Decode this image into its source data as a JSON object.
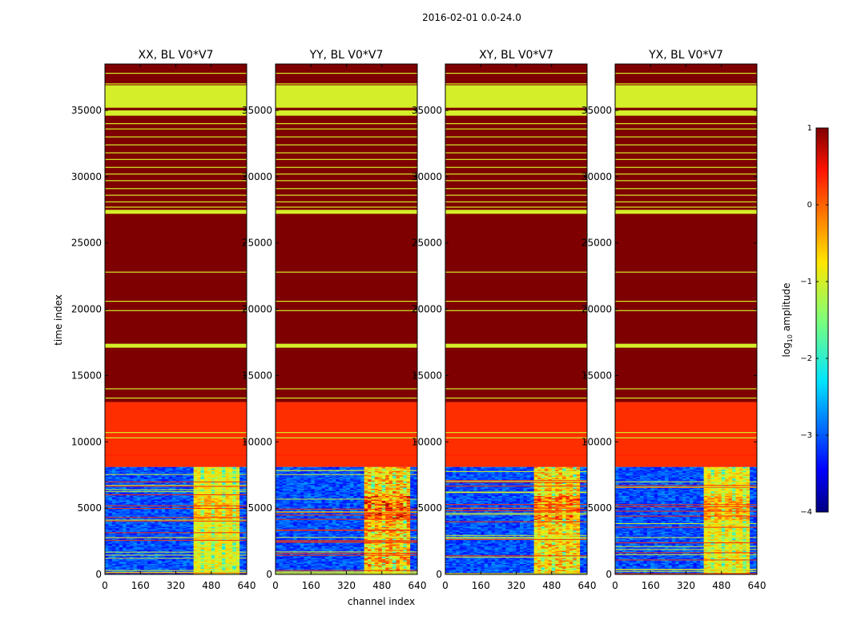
{
  "chart_data": {
    "type": "heatmap",
    "suptitle": "2016-02-01 0.0-24.0",
    "xlabel": "channel index",
    "ylabel": "time index",
    "xlim": [
      0,
      640
    ],
    "ylim": [
      0,
      38500
    ],
    "xticks": [
      0,
      160,
      320,
      480,
      640
    ],
    "xtick_labels": [
      "0",
      "160",
      "320",
      "480",
      "640"
    ],
    "yticks": [
      0,
      5000,
      10000,
      15000,
      20000,
      25000,
      30000,
      35000
    ],
    "ytick_labels": [
      "0",
      "5000",
      "10000",
      "15000",
      "20000",
      "25000",
      "30000",
      "35000"
    ],
    "colormap": "jet",
    "colorbar": {
      "label": "log10 amplitude",
      "label_base": "log",
      "label_sub": "10",
      "label_rest": "amplitude",
      "range": [
        -4,
        1
      ],
      "ticks": [
        1,
        0,
        -1,
        -2,
        -3,
        -4
      ],
      "tick_labels": [
        "1",
        "0",
        "−1",
        "−2",
        "−3",
        "−4"
      ]
    },
    "panels": [
      {
        "name": "XX",
        "title": "XX, BL V0*V7",
        "rfi_strength": 0.45
      },
      {
        "name": "YY",
        "title": "YY, BL V0*V7",
        "rfi_strength": 0.85
      },
      {
        "name": "XY",
        "title": "XY, BL V0*V7",
        "rfi_strength": 0.75
      },
      {
        "name": "YX",
        "title": "YX, BL V0*V7",
        "rfi_strength": 0.55
      }
    ],
    "rfi_channel_range": [
      400,
      600
    ],
    "bands": [
      {
        "from": 0,
        "to": 8100,
        "kind": "data",
        "log_amp": -3.3
      },
      {
        "from": 8100,
        "to": 13000,
        "kind": "flag",
        "log_amp": 0.3
      },
      {
        "from": 13000,
        "to": 38500,
        "kind": "flag",
        "log_amp": 1.0
      }
    ],
    "sub_bands": [
      {
        "from": 27200,
        "to": 27500,
        "log_amp": -1.0
      },
      {
        "from": 17100,
        "to": 17400,
        "log_amp": -1.0
      },
      {
        "from": 34600,
        "to": 35000,
        "log_amp": -1.0
      },
      {
        "from": 35200,
        "to": 36900,
        "log_amp": -1.0
      }
    ],
    "lines": [
      {
        "t": 37800,
        "log_amp": -1.0
      },
      {
        "t": 37000,
        "log_amp": -1.0
      },
      {
        "t": 34000,
        "log_amp": -1.0
      },
      {
        "t": 33600,
        "log_amp": -1.0
      },
      {
        "t": 33000,
        "log_amp": -1.0
      },
      {
        "t": 32400,
        "log_amp": -1.0
      },
      {
        "t": 31800,
        "log_amp": -1.0
      },
      {
        "t": 31300,
        "log_amp": -1.0
      },
      {
        "t": 30700,
        "log_amp": -1.0
      },
      {
        "t": 30200,
        "log_amp": -1.0
      },
      {
        "t": 29700,
        "log_amp": -1.0
      },
      {
        "t": 29100,
        "log_amp": -1.0
      },
      {
        "t": 28600,
        "log_amp": -1.0
      },
      {
        "t": 28100,
        "log_amp": -1.0
      },
      {
        "t": 27700,
        "log_amp": -1.0
      },
      {
        "t": 22800,
        "log_amp": -1.0
      },
      {
        "t": 20600,
        "log_amp": -1.0
      },
      {
        "t": 19900,
        "log_amp": -1.0
      },
      {
        "t": 14000,
        "log_amp": -1.0
      },
      {
        "t": 13300,
        "log_amp": -1.0
      },
      {
        "t": 10700,
        "log_amp": -1.0
      },
      {
        "t": 10300,
        "log_amp": -1.0
      },
      {
        "t": 9000,
        "log_amp": 0.4
      }
    ]
  }
}
